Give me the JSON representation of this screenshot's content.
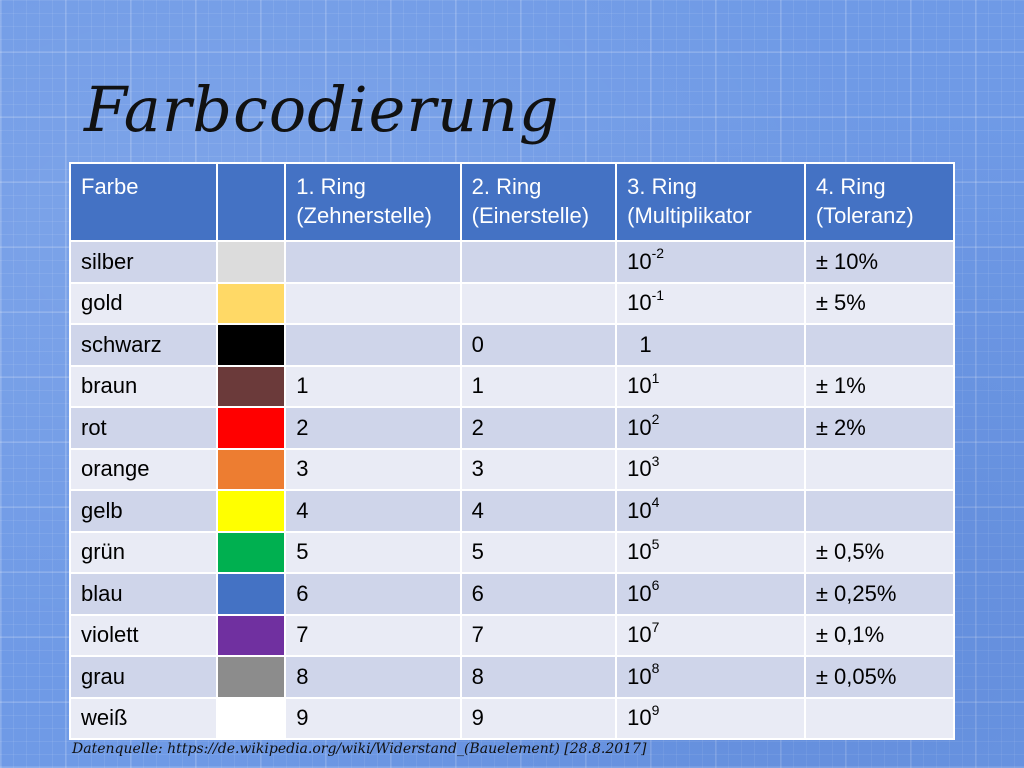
{
  "title": "Farbcodierung",
  "table": {
    "headers": [
      "Farbe",
      "",
      "1. Ring\n(Zehnerstelle)",
      "2. Ring\n(Einerstelle)",
      "3. Ring\n(Multiplikator",
      "4. Ring\n(Toleranz)"
    ],
    "rows": [
      {
        "name": "silber",
        "color": "#dcdcdc",
        "ring1": "",
        "ring2": "",
        "mult_base": "10",
        "mult_exp": "-2",
        "tol": "± 10%"
      },
      {
        "name": "gold",
        "color": "#ffd966",
        "ring1": "",
        "ring2": "",
        "mult_base": "10",
        "mult_exp": "-1",
        "tol": "± 5%"
      },
      {
        "name": "schwarz",
        "color": "#000000",
        "ring1": "",
        "ring2": "0",
        "mult_base": "  1",
        "mult_exp": "",
        "tol": ""
      },
      {
        "name": "braun",
        "color": "#6b3a3a",
        "ring1": "1",
        "ring2": "1",
        "mult_base": "10",
        "mult_exp": "1",
        "tol": "± 1%"
      },
      {
        "name": "rot",
        "color": "#ff0000",
        "ring1": "2",
        "ring2": "2",
        "mult_base": "10",
        "mult_exp": "2",
        "tol": "± 2%"
      },
      {
        "name": "orange",
        "color": "#ed7d31",
        "ring1": "3",
        "ring2": "3",
        "mult_base": "10",
        "mult_exp": "3",
        "tol": ""
      },
      {
        "name": "gelb",
        "color": "#ffff00",
        "ring1": "4",
        "ring2": "4",
        "mult_base": "10",
        "mult_exp": "4",
        "tol": ""
      },
      {
        "name": "grün",
        "color": "#00b050",
        "ring1": "5",
        "ring2": "5",
        "mult_base": "10",
        "mult_exp": "5",
        "tol": "± 0,5%"
      },
      {
        "name": "blau",
        "color": "#4472c4",
        "ring1": "6",
        "ring2": "6",
        "mult_base": "10",
        "mult_exp": "6",
        "tol": "± 0,25%"
      },
      {
        "name": "violett",
        "color": "#7030a0",
        "ring1": "7",
        "ring2": "7",
        "mult_base": "10",
        "mult_exp": "7",
        "tol": "± 0,1%"
      },
      {
        "name": "grau",
        "color": "#8c8c8c",
        "ring1": "8",
        "ring2": "8",
        "mult_base": "10",
        "mult_exp": "8",
        "tol": "± 0,05%"
      },
      {
        "name": "weiß",
        "color": "#ffffff",
        "ring1": "9",
        "ring2": "9",
        "mult_base": "10",
        "mult_exp": "9",
        "tol": ""
      }
    ]
  },
  "source": "Datenquelle: https://de.wikipedia.org/wiki/Widerstand_(Bauelement) [28.8.2017]"
}
